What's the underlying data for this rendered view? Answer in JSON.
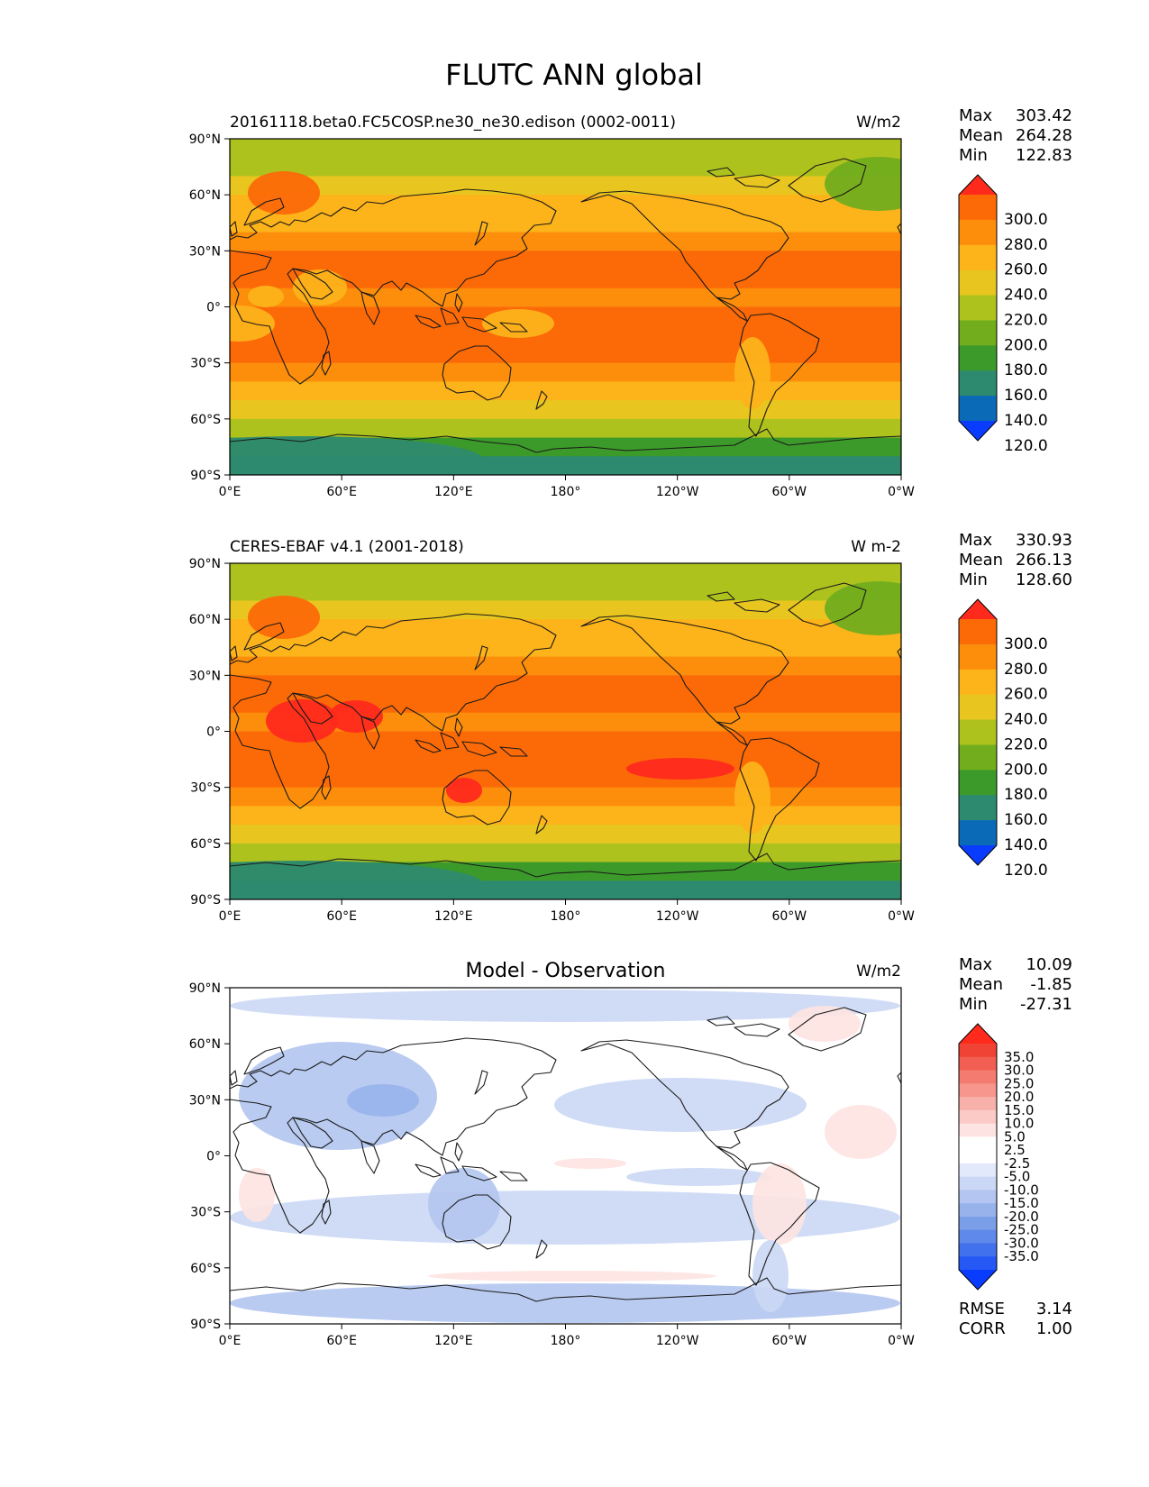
{
  "figure_title": "FLUTC ANN global",
  "longitude_ticks": [
    "0°E",
    "60°E",
    "120°E",
    "180°",
    "120°W",
    "60°W",
    "0°W"
  ],
  "latitude_ticks": [
    "90°N",
    "60°N",
    "30°N",
    "0°",
    "30°S",
    "60°S",
    "90°S"
  ],
  "colors": {
    "absolute_levels": [
      "#0a3cff",
      "#0a6ab8",
      "#2e8a6e",
      "#3c9a2a",
      "#72ad1e",
      "#aec21e",
      "#e8c61f",
      "#fdb31a",
      "#fc8e0c",
      "#fc6a08",
      "#ff2a1c"
    ],
    "diff_levels": [
      "#0a3cff",
      "#2558f5",
      "#4271ed",
      "#5f89ea",
      "#7b9ee8",
      "#98b2ec",
      "#b3c5f0",
      "#cbd8f5",
      "#e2e9fa",
      "#ffffff",
      "#ffffff",
      "#fde3e1",
      "#fbcac6",
      "#f8b0aa",
      "#f6968d",
      "#f47b70",
      "#f25f52",
      "#f04335",
      "#ff2a1c"
    ],
    "coastline": "#1a1a1a"
  },
  "panels": [
    {
      "id": "model",
      "left_title": "20161118.beta0.FC5COSP.ne30_ne30.edison (0002-0011)",
      "right_title": "W/m2",
      "stats": [
        {
          "label": "Max",
          "value": "303.42"
        },
        {
          "label": "Mean",
          "value": "264.28"
        },
        {
          "label": "Min",
          "value": "122.83"
        }
      ],
      "colorbar_labels": [
        "300.0",
        "280.0",
        "260.0",
        "240.0",
        "220.0",
        "200.0",
        "180.0",
        "160.0",
        "140.0",
        "120.0"
      ]
    },
    {
      "id": "obs",
      "left_title": "CERES-EBAF v4.1 (2001-2018)",
      "right_title": "W m-2",
      "stats": [
        {
          "label": "Max",
          "value": "330.93"
        },
        {
          "label": "Mean",
          "value": "266.13"
        },
        {
          "label": "Min",
          "value": "128.60"
        }
      ],
      "colorbar_labels": [
        "300.0",
        "280.0",
        "260.0",
        "240.0",
        "220.0",
        "200.0",
        "180.0",
        "160.0",
        "140.0",
        "120.0"
      ]
    },
    {
      "id": "diff",
      "center_title": "Model - Observation",
      "right_title": "W/m2",
      "stats": [
        {
          "label": "Max",
          "value": "10.09"
        },
        {
          "label": "Mean",
          "value": "-1.85"
        },
        {
          "label": "Min",
          "value": "-27.31"
        }
      ],
      "colorbar_labels": [
        "35.0",
        "30.0",
        "25.0",
        "20.0",
        "15.0",
        "10.0",
        "5.0",
        "2.5",
        "-2.5",
        "-5.0",
        "-10.0",
        "-15.0",
        "-20.0",
        "-25.0",
        "-30.0",
        "-35.0"
      ],
      "extra_stats": [
        {
          "label": "RMSE",
          "value": "3.14"
        },
        {
          "label": "CORR",
          "value": "1.00"
        }
      ]
    }
  ],
  "chart_data": [
    {
      "type": "heatmap",
      "title": "20161118.beta0.FC5COSP.ne30_ne30.edison (0002-0011)",
      "units": "W/m2",
      "x_axis": "longitude",
      "xlim": [
        0,
        360
      ],
      "y_axis": "latitude",
      "ylim": [
        -90,
        90
      ],
      "zonal_mean_profile": {
        "lat": [
          85,
          75,
          65,
          55,
          45,
          35,
          25,
          15,
          5,
          -5,
          -15,
          -25,
          -35,
          -45,
          -55,
          -65,
          -75,
          -85
        ],
        "value": [
          205,
          215,
          225,
          240,
          255,
          270,
          285,
          285,
          275,
          280,
          285,
          280,
          265,
          245,
          228,
          210,
          170,
          140
        ]
      },
      "levels": [
        120,
        140,
        160,
        180,
        200,
        220,
        240,
        260,
        280,
        300
      ],
      "max": 303.42,
      "mean": 264.28,
      "min": 122.83
    },
    {
      "type": "heatmap",
      "title": "CERES-EBAF v4.1 (2001-2018)",
      "units": "W m-2",
      "x_axis": "longitude",
      "xlim": [
        0,
        360
      ],
      "y_axis": "latitude",
      "ylim": [
        -90,
        90
      ],
      "zonal_mean_profile": {
        "lat": [
          85,
          75,
          65,
          55,
          45,
          35,
          25,
          15,
          5,
          -5,
          -15,
          -25,
          -35,
          -45,
          -55,
          -65,
          -75,
          -85
        ],
        "value": [
          205,
          218,
          228,
          242,
          258,
          272,
          288,
          288,
          278,
          282,
          288,
          282,
          268,
          248,
          230,
          212,
          175,
          145
        ]
      },
      "levels": [
        120,
        140,
        160,
        180,
        200,
        220,
        240,
        260,
        280,
        300
      ],
      "max": 330.93,
      "mean": 266.13,
      "min": 128.6
    },
    {
      "type": "heatmap",
      "title": "Model - Observation",
      "units": "W/m2",
      "x_axis": "longitude",
      "xlim": [
        0,
        360
      ],
      "y_axis": "latitude",
      "ylim": [
        -90,
        90
      ],
      "levels": [
        -35,
        -30,
        -25,
        -20,
        -15,
        -10,
        -5,
        -2.5,
        2.5,
        5,
        10,
        15,
        20,
        25,
        30,
        35
      ],
      "max": 10.09,
      "mean": -1.85,
      "min": -27.31,
      "rmse": 3.14,
      "corr": 1.0
    }
  ]
}
